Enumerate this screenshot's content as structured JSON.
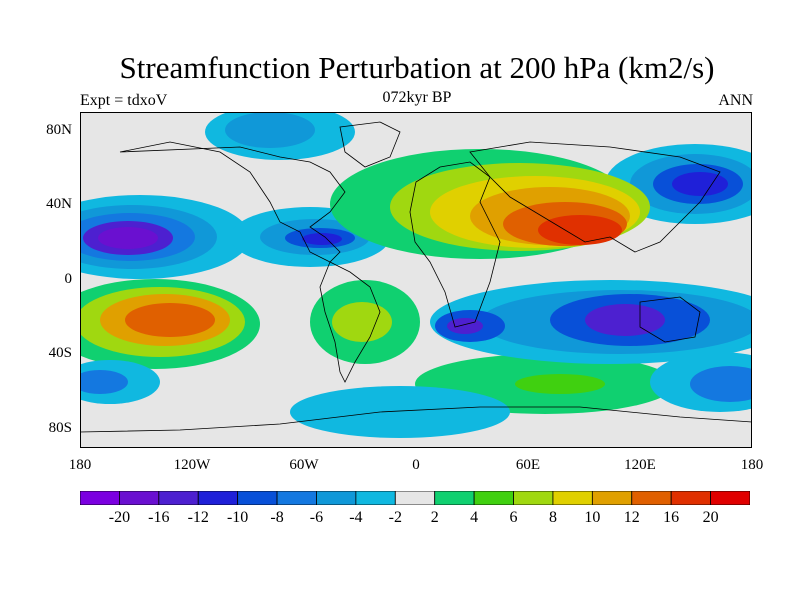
{
  "header": {
    "title": "Streamfunction Perturbation at 200 hPa (km2/s)",
    "left": "Expt = tdxoV",
    "center": "072kyr BP",
    "right": "ANN"
  },
  "axes": {
    "y_ticks": [
      "80N",
      "40N",
      "0",
      "40S",
      "80S"
    ],
    "x_ticks": [
      "180",
      "120W",
      "60W",
      "0",
      "60E",
      "120E",
      "180"
    ]
  },
  "colorbar": {
    "labels": [
      "-20",
      "-16",
      "-12",
      "-10",
      "-8",
      "-6",
      "-4",
      "-2",
      "2",
      "4",
      "6",
      "8",
      "10",
      "12",
      "16",
      "20"
    ],
    "colors": [
      "#7b00e0",
      "#6a10d0",
      "#4d20d0",
      "#1f20d8",
      "#0850d8",
      "#1478e0",
      "#1098d8",
      "#10b8e0",
      "#e6e6e6",
      "#10d070",
      "#40d010",
      "#a0d810",
      "#e0d000",
      "#e0a000",
      "#e06000",
      "#e03000",
      "#e00000"
    ]
  }
}
